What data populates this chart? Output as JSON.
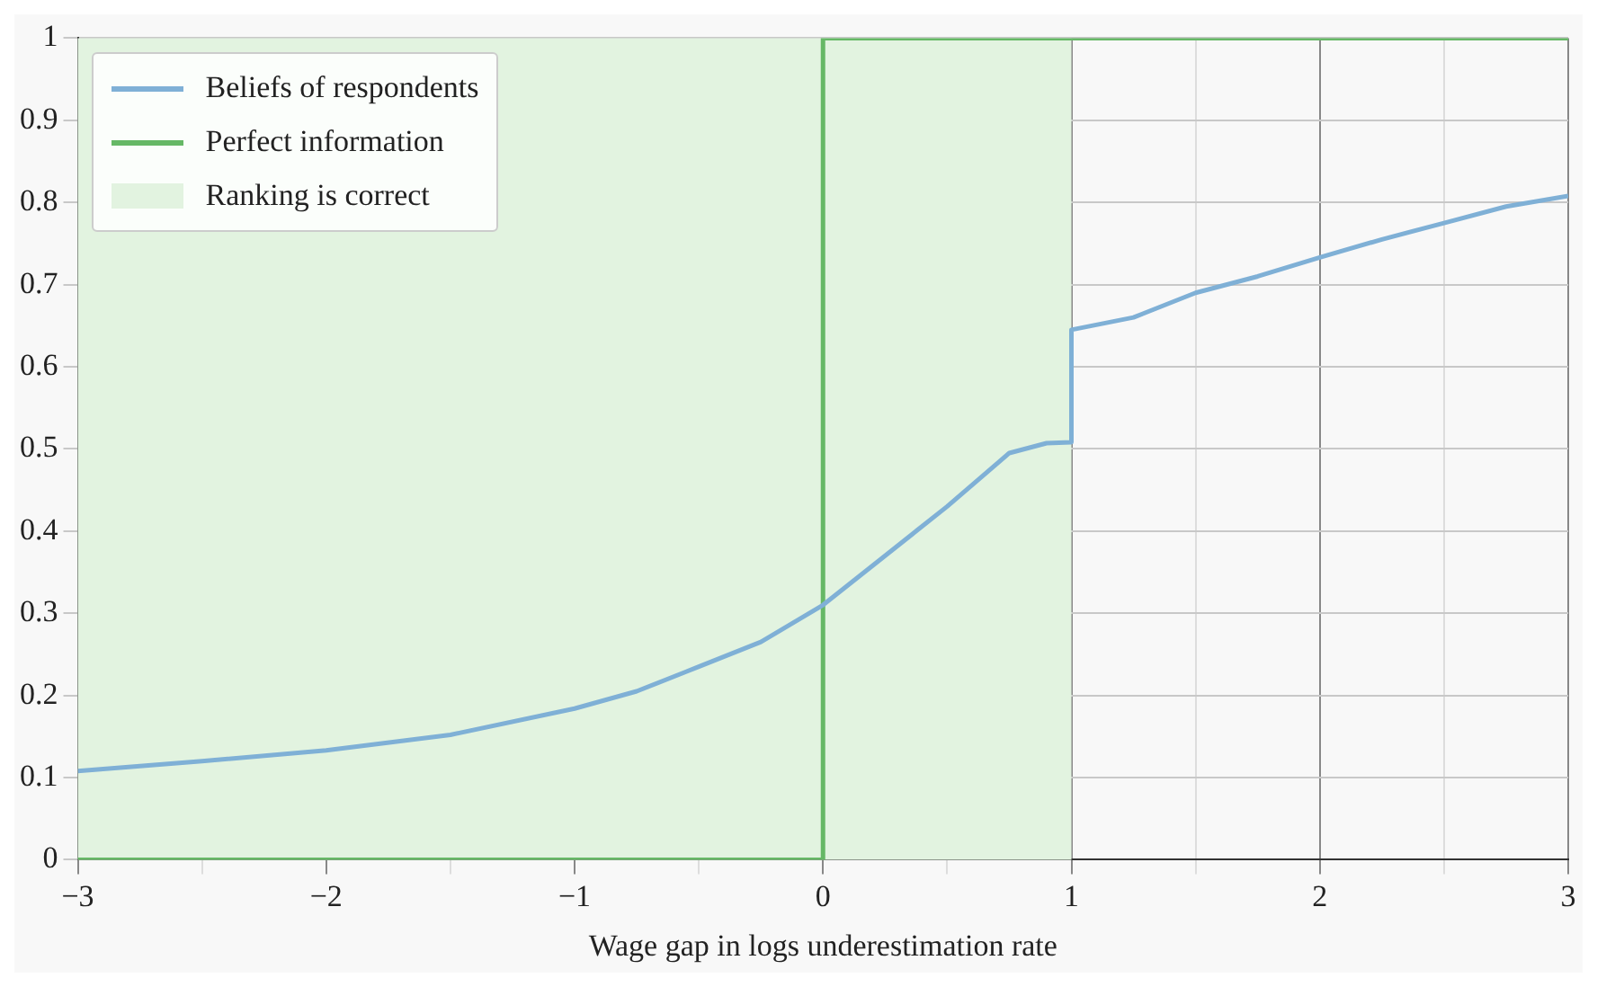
{
  "chart_data": {
    "type": "line",
    "xlabel": "Wage gap in logs underestimation rate",
    "series": [
      {
        "name": "Beliefs of respondents",
        "color": "#7fb0d6",
        "x": [
          -3,
          -2.5,
          -2,
          -1.5,
          -1,
          -0.75,
          -0.5,
          -0.25,
          0,
          0.25,
          0.5,
          0.75,
          0.9,
          1,
          1,
          1.25,
          1.5,
          1.75,
          2,
          2.25,
          2.5,
          2.75,
          3
        ],
        "values": [
          0.108,
          0.12,
          0.133,
          0.152,
          0.184,
          0.205,
          0.235,
          0.265,
          0.31,
          0.37,
          0.43,
          0.495,
          0.507,
          0.508,
          0.645,
          0.66,
          0.69,
          0.71,
          0.733,
          0.755,
          0.775,
          0.795,
          0.808
        ]
      },
      {
        "name": "Perfect information",
        "color": "#66b866",
        "x": [
          -3,
          0,
          0,
          3
        ],
        "values": [
          0,
          0,
          1,
          1
        ]
      }
    ],
    "bands": [
      {
        "axis": "x",
        "from": -3,
        "to": 1,
        "label": "Ranking is correct",
        "color": "#e2f3e0"
      }
    ],
    "xlim": [
      -3,
      3
    ],
    "ylim": [
      0,
      1
    ],
    "xticks": [
      -3,
      {
        "value": -2.5,
        "label": null
      },
      -2,
      {
        "value": -1.5,
        "label": null
      },
      -1,
      {
        "value": -0.5,
        "label": null
      },
      0,
      {
        "value": 0.5,
        "label": null
      },
      1,
      {
        "value": 1.5,
        "label": null
      },
      2,
      {
        "value": 2.5,
        "label": null
      },
      3
    ],
    "yticks": [
      0,
      0.1,
      0.2,
      0.3,
      0.4,
      0.5,
      0.6,
      0.7,
      0.8,
      0.9,
      1
    ],
    "grid": true,
    "legend": "top left",
    "marker": "none",
    "line_style": "solid"
  }
}
